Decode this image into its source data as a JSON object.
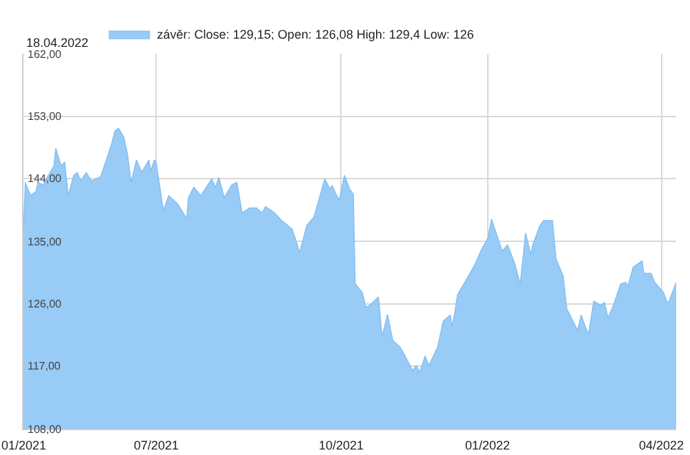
{
  "chart_data": {
    "type": "area",
    "annotations": [
      "18.04.2022"
    ],
    "legend": "top left",
    "grid": true,
    "ylim": [
      108,
      162
    ],
    "yticks": [
      {
        "value": 108,
        "label": "108,00"
      },
      {
        "value": 117,
        "label": "117,00"
      },
      {
        "value": 126,
        "label": "126,00"
      },
      {
        "value": 135,
        "label": "135,00"
      },
      {
        "value": 144,
        "label": "144,00"
      },
      {
        "value": 153,
        "label": "153,00"
      },
      {
        "value": 162,
        "label": "162,00"
      }
    ],
    "xlim": [
      "2021-04-19",
      "2022-04-18"
    ],
    "xticks": [
      {
        "value": "2021-04-19",
        "label": "01/2021"
      },
      {
        "value": "2021-07-02",
        "label": "07/2021"
      },
      {
        "value": "2021-10-13",
        "label": "10/2021"
      },
      {
        "value": "2022-01-03",
        "label": "01/2022"
      },
      {
        "value": "2022-04-10",
        "label": "04/2022"
      }
    ],
    "x": [
      "2021-04-19",
      "2021-04-20",
      "2021-04-23",
      "2021-04-26",
      "2021-04-27",
      "2021-04-30",
      "2021-05-04",
      "2021-05-06",
      "2021-05-07",
      "2021-05-10",
      "2021-05-12",
      "2021-05-14",
      "2021-05-17",
      "2021-05-19",
      "2021-05-21",
      "2021-05-24",
      "2021-05-27",
      "2021-06-01",
      "2021-06-03",
      "2021-06-07",
      "2021-06-09",
      "2021-06-11",
      "2021-06-14",
      "2021-06-16",
      "2021-06-18",
      "2021-06-21",
      "2021-06-24",
      "2021-06-28",
      "2021-06-29",
      "2021-07-01",
      "2021-07-02",
      "2021-07-06",
      "2021-07-09",
      "2021-07-14",
      "2021-07-19",
      "2021-07-20",
      "2021-07-23",
      "2021-07-27",
      "2021-08-02",
      "2021-08-04",
      "2021-08-06",
      "2021-08-09",
      "2021-08-13",
      "2021-08-16",
      "2021-08-19",
      "2021-08-23",
      "2021-08-27",
      "2021-08-30",
      "2021-09-01",
      "2021-09-06",
      "2021-09-10",
      "2021-09-16",
      "2021-09-20",
      "2021-09-24",
      "2021-09-28",
      "2021-10-04",
      "2021-10-07",
      "2021-10-08",
      "2021-10-12",
      "2021-10-15",
      "2021-10-18",
      "2021-10-20",
      "2021-10-21",
      "2021-10-25",
      "2021-10-27",
      "2021-10-29",
      "2021-11-03",
      "2021-11-05",
      "2021-11-08",
      "2021-11-11",
      "2021-11-15",
      "2021-11-17",
      "2021-11-22",
      "2021-11-24",
      "2021-11-26",
      "2021-11-29",
      "2021-12-01",
      "2021-12-06",
      "2021-12-09",
      "2021-12-13",
      "2021-12-14",
      "2021-12-15",
      "2021-12-17",
      "2021-12-22",
      "2021-12-27",
      "2021-12-30",
      "2022-01-03",
      "2022-01-05",
      "2022-01-07",
      "2022-01-11",
      "2022-01-14",
      "2022-01-18",
      "2022-01-21",
      "2022-01-24",
      "2022-01-27",
      "2022-01-28",
      "2022-02-01",
      "2022-02-03",
      "2022-02-08",
      "2022-02-10",
      "2022-02-14",
      "2022-02-16",
      "2022-02-22",
      "2022-02-24",
      "2022-02-28",
      "2022-03-03",
      "2022-03-07",
      "2022-03-09",
      "2022-03-11",
      "2022-03-14",
      "2022-03-18",
      "2022-03-21",
      "2022-03-22",
      "2022-03-25",
      "2022-03-30",
      "2022-03-31",
      "2022-04-04",
      "2022-04-06",
      "2022-04-11",
      "2022-04-13",
      "2022-04-14",
      "2022-04-18"
    ],
    "series": [
      {
        "name": "závěr: Close: 129,15; Open: 126,08 High: 129,4 Low: 126",
        "color": "#98cbf6",
        "values": [
          136.7,
          143.5,
          141.6,
          142.2,
          143.5,
          143.1,
          145,
          145.9,
          148.4,
          145.9,
          146.4,
          141.6,
          144.5,
          144.9,
          143.7,
          144.9,
          143.7,
          144.3,
          145.8,
          148.9,
          150.9,
          151.3,
          150,
          147.6,
          143.5,
          146.7,
          145,
          146.7,
          145.2,
          146.7,
          146.4,
          139.5,
          141.6,
          140.4,
          138.3,
          141.3,
          142.8,
          141.6,
          144,
          142.8,
          144.2,
          141.3,
          143.1,
          143.5,
          139.1,
          139.8,
          139.8,
          139.1,
          140,
          139.1,
          138,
          136.7,
          133.4,
          137.3,
          138.5,
          144,
          142.5,
          143.1,
          140.9,
          144.5,
          142.5,
          141.8,
          128.9,
          127.6,
          125.5,
          125.8,
          127,
          121.3,
          124.5,
          120.7,
          119.8,
          118.9,
          116.4,
          117.1,
          116.2,
          118.5,
          117.1,
          119.8,
          123.5,
          124.4,
          122.8,
          124,
          127.3,
          129.5,
          131.8,
          133.6,
          135.5,
          138.2,
          136.7,
          133.6,
          134.5,
          131.8,
          128.9,
          136.2,
          133.1,
          134.5,
          137.3,
          138,
          138,
          132.5,
          130,
          125.3,
          122.2,
          124.4,
          121.6,
          126.4,
          125.8,
          126.2,
          124,
          125.8,
          128.9,
          129.1,
          128.5,
          131.3,
          132.2,
          130.4,
          130.4,
          129.1,
          127.6,
          126.2,
          126.4,
          129.1
        ]
      }
    ]
  }
}
